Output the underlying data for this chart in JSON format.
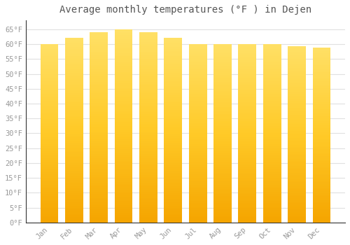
{
  "months": [
    "Jan",
    "Feb",
    "Mar",
    "Apr",
    "May",
    "Jun",
    "Jul",
    "Aug",
    "Sep",
    "Oct",
    "Nov",
    "Dec"
  ],
  "values": [
    60.1,
    62.2,
    63.9,
    65.0,
    63.9,
    62.1,
    60.1,
    59.9,
    60.0,
    60.1,
    59.2,
    58.8
  ],
  "bar_color_center": "#FFD040",
  "bar_color_edge": "#F5A800",
  "background_color": "#FFFFFF",
  "plot_bg_color": "#FFFFFF",
  "title": "Average monthly temperatures (°F ) in Dejen",
  "title_fontsize": 10,
  "ylabel_step": 5,
  "ylim": [
    0,
    68
  ],
  "ytick_min": 0,
  "ytick_max": 65,
  "grid_color": "#E0E0E0",
  "tick_label_color": "#999999",
  "title_color": "#555555",
  "font_family": "monospace",
  "bar_width": 0.75
}
